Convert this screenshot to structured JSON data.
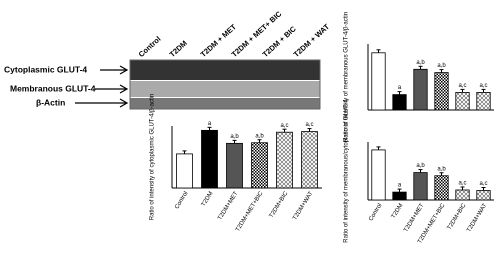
{
  "blot": {
    "lanes": [
      "Control",
      "T2DM",
      "T2DM + MET",
      "T2DM + MET+ BIC",
      "T2DM + BIC",
      "T2DM + WAT"
    ],
    "rows": [
      "Cytoplasmic GLUT-4",
      "Membranous GLUT-4",
      "β-Actin"
    ]
  },
  "chart_data": [
    {
      "type": "bar",
      "y_label": "Ratio of intensity of cytoplasmic GLUT-4/β-actin",
      "categories": [
        "Control",
        "T2DM",
        "T2DM+MET",
        "T2DM+MET+BIC",
        "T2DM+BIC",
        "T2DM+WAT"
      ],
      "values": [
        0.55,
        0.93,
        0.72,
        0.73,
        0.9,
        0.91
      ],
      "annotations": [
        null,
        "a",
        "a,b",
        "a,b",
        "a,c",
        "a,c"
      ],
      "colors": [
        "#ffffff",
        "#000000",
        "#555555",
        "#ffffff",
        "#ffffff",
        "#ffffff"
      ],
      "patterns": [
        null,
        null,
        null,
        "checker",
        "crosshatch",
        "crosshatch"
      ],
      "ylim": [
        0,
        1
      ]
    },
    {
      "type": "bar",
      "y_label": "Ratio of intensity of membranous GLUT-4/β-actin",
      "categories": [
        null,
        null,
        null,
        null,
        null,
        null
      ],
      "values": [
        0.52,
        0.14,
        0.37,
        0.34,
        0.16,
        0.16
      ],
      "annotations": [
        null,
        "a",
        "a,b",
        "a,b",
        "a,c",
        "a,c"
      ],
      "colors": [
        "#ffffff",
        "#000000",
        "#555555",
        "#ffffff",
        "#ffffff",
        "#ffffff"
      ],
      "patterns": [
        null,
        null,
        null,
        "checker",
        "crosshatch",
        "crosshatch"
      ],
      "ylim": [
        0,
        0.6
      ]
    },
    {
      "type": "bar",
      "y_label": "Ratio of intensity of membranous/cytoplasmic GLUT-4",
      "categories": [
        "Control",
        "T2DM",
        "T2DM+MET",
        "T2DM+MET+BIC",
        "T2DM+BIC",
        "T2DM+WAT"
      ],
      "values": [
        0.95,
        0.15,
        0.52,
        0.46,
        0.19,
        0.18
      ],
      "annotations": [
        null,
        "a",
        "a,b",
        "a,b",
        "a,c",
        "a,c"
      ],
      "colors": [
        "#ffffff",
        "#000000",
        "#555555",
        "#ffffff",
        "#ffffff",
        "#ffffff"
      ],
      "patterns": [
        null,
        null,
        null,
        "checker",
        "crosshatch",
        "crosshatch"
      ],
      "ylim": [
        0,
        1.1
      ]
    }
  ]
}
